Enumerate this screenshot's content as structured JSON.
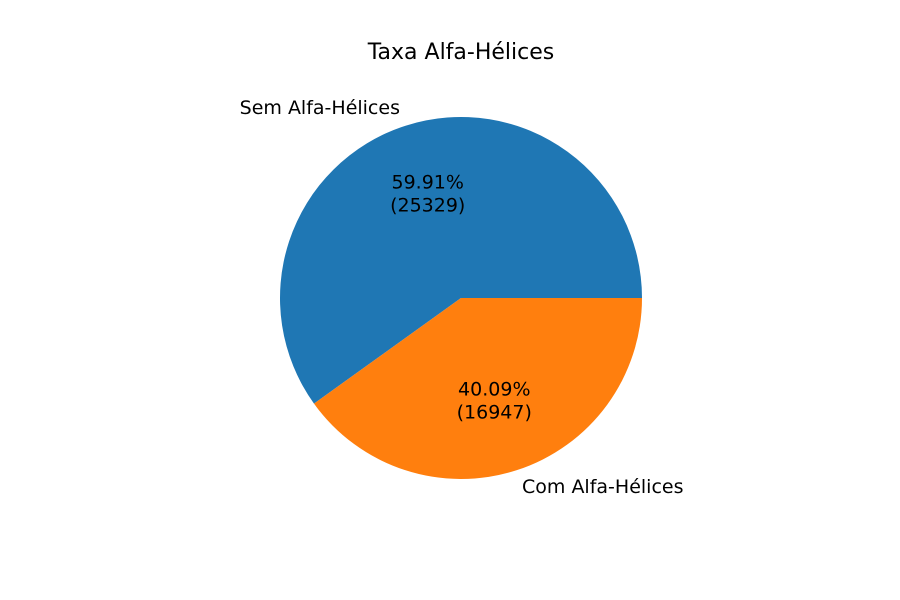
{
  "chart_data": {
    "type": "pie",
    "title": "Taxa Alfa-Hélices",
    "categories": [
      "Sem Alfa-Hélices",
      "Com Alfa-Hélices"
    ],
    "values": [
      25329,
      16947
    ],
    "percent_labels": [
      "59.91%",
      "40.09%"
    ],
    "count_labels": [
      "(25329)",
      "(16947)"
    ],
    "colors": [
      "#1f77b4",
      "#ff7f0e"
    ],
    "start_angle_deg": 0,
    "direction": "counterclockwise"
  }
}
